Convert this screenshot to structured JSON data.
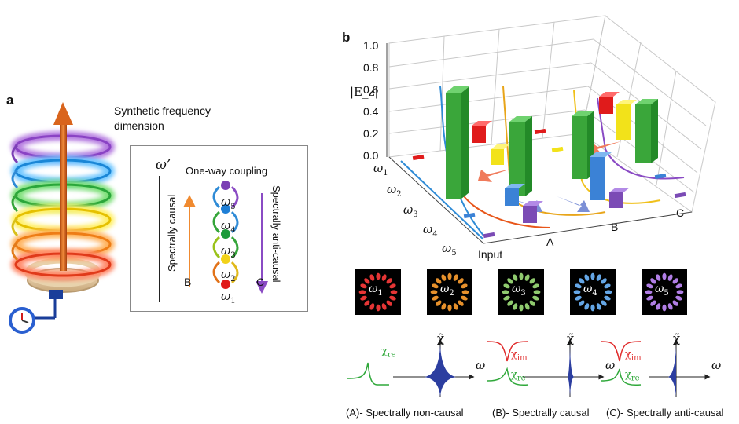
{
  "panel_a": {
    "letter": "a",
    "title_line1": "Synthetic frequency",
    "title_line2": "dimension",
    "inset": {
      "axis_label": "ω’",
      "title": "One-way coupling",
      "left_label": "Spectrally causal",
      "right_label": "Spectrally anti-causal",
      "label_b": "B",
      "label_c": "C",
      "modes": [
        {
          "base": "ω",
          "sub": "5",
          "color": "#7b3fb5"
        },
        {
          "base": "ω",
          "sub": "4",
          "color": "#1f7fd6"
        },
        {
          "base": "ω",
          "sub": "3",
          "color": "#1a9a3a"
        },
        {
          "base": "ω",
          "sub": "2",
          "color": "#f2d21a"
        },
        {
          "base": "ω",
          "sub": "1",
          "color": "#e01b1b"
        }
      ]
    }
  },
  "panel_b": {
    "letter": "b",
    "z_axis_label": "|E_z|",
    "z_ticks": [
      "1.0",
      "0.8",
      "0.6",
      "0.4",
      "0.2",
      "0.0"
    ],
    "freq_labels": [
      {
        "base": "ω",
        "sub": "1"
      },
      {
        "base": "ω",
        "sub": "2"
      },
      {
        "base": "ω",
        "sub": "3"
      },
      {
        "base": "ω",
        "sub": "4"
      },
      {
        "base": "ω",
        "sub": "5"
      }
    ],
    "position_labels": [
      "Input",
      "A",
      "B",
      "C"
    ],
    "bar_colors": {
      "w1": "#e01b1b",
      "w2": "#f7931e",
      "w3": "#f2e21a",
      "w4": "#3aa63a",
      "w5": "#3b82d6",
      "w6": "#7b4bb5"
    }
  },
  "mode_images": [
    {
      "base": "ω",
      "sub": "1",
      "color": "#ff3b3b"
    },
    {
      "base": "ω",
      "sub": "2",
      "color": "#ffa030"
    },
    {
      "base": "ω",
      "sub": "3",
      "color": "#9fe07a"
    },
    {
      "base": "ω",
      "sub": "4",
      "color": "#6fb8ff"
    },
    {
      "base": "ω",
      "sub": "5",
      "color": "#c48cff"
    }
  ],
  "response_plots": {
    "chi_axis": "χ̃",
    "omega_axis": "ω",
    "chi_re": "χ",
    "chi_re_sub": "re",
    "chi_im": "χ",
    "chi_im_sub": "im",
    "captions": [
      "(A)- Spectrally non-causal",
      "(B)- Spectrally causal",
      "(C)- Spectrally anti-causal"
    ]
  }
}
